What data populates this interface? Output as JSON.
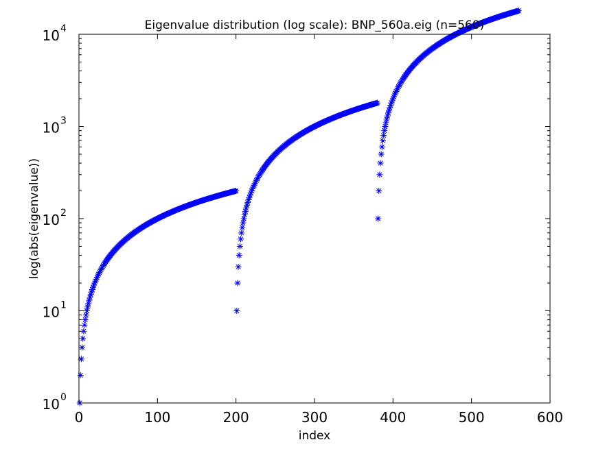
{
  "chart_data": {
    "type": "scatter",
    "title": "Eigenvalue distribution (log scale): BNP_560a.eig (n=560)",
    "xlabel": "index",
    "ylabel": "log(abs(eigenvalue))",
    "xlim": [
      0,
      600
    ],
    "ylim": [
      1,
      10000
    ],
    "yscale": "log",
    "grid": false,
    "marker": "*",
    "marker_color": "#0000ff",
    "x_ticks": [
      0,
      100,
      200,
      300,
      400,
      500,
      600
    ],
    "x_tick_labels": [
      "0",
      "100",
      "200",
      "300",
      "400",
      "500",
      "600"
    ],
    "y_ticks": [
      1,
      10,
      100,
      1000,
      10000
    ],
    "y_tick_labels": [
      {
        "base": "10",
        "exp": "0"
      },
      {
        "base": "10",
        "exp": "1"
      },
      {
        "base": "10",
        "exp": "2"
      },
      {
        "base": "10",
        "exp": "3"
      },
      {
        "base": "10",
        "exp": "4"
      }
    ],
    "series": [
      {
        "segments": [
          {
            "x_start": 1,
            "x_end": 200,
            "scale": 1,
            "offset": 0
          },
          {
            "x_start": 201,
            "x_end": 380,
            "scale": 10,
            "offset": 200
          },
          {
            "x_start": 381,
            "x_end": 560,
            "scale": 100,
            "offset": 380
          }
        ],
        "description": "Three consecutive blocks of eigenvalues, each ordered ascending; within each block the value grows from the block's start to 100× its base, producing a stepped log curve from 10^0 to 10^4."
      }
    ]
  }
}
